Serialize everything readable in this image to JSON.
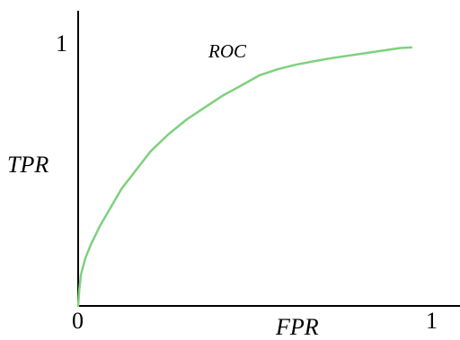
{
  "chart_data": {
    "type": "line",
    "xlabel": "FPR",
    "ylabel": "TPR",
    "xlim": [
      0,
      1
    ],
    "ylim": [
      0,
      1
    ],
    "x_ticks": [
      "0",
      "1"
    ],
    "y_ticks": [
      "1"
    ],
    "grid": false,
    "legend": "none",
    "series": [
      {
        "name": "ROC",
        "color": "#7ed17e",
        "x": [
          0.0,
          0.003,
          0.008,
          0.02,
          0.035,
          0.06,
          0.09,
          0.12,
          0.16,
          0.2,
          0.25,
          0.3,
          0.35,
          0.4,
          0.45,
          0.5,
          0.55,
          0.6,
          0.65,
          0.7,
          0.75,
          0.8,
          0.85,
          0.89,
          0.92
        ],
        "y": [
          0.0,
          0.06,
          0.12,
          0.18,
          0.23,
          0.3,
          0.37,
          0.44,
          0.51,
          0.58,
          0.645,
          0.7,
          0.745,
          0.79,
          0.827,
          0.865,
          0.888,
          0.905,
          0.918,
          0.93,
          0.94,
          0.95,
          0.96,
          0.968,
          0.97
        ]
      }
    ]
  }
}
